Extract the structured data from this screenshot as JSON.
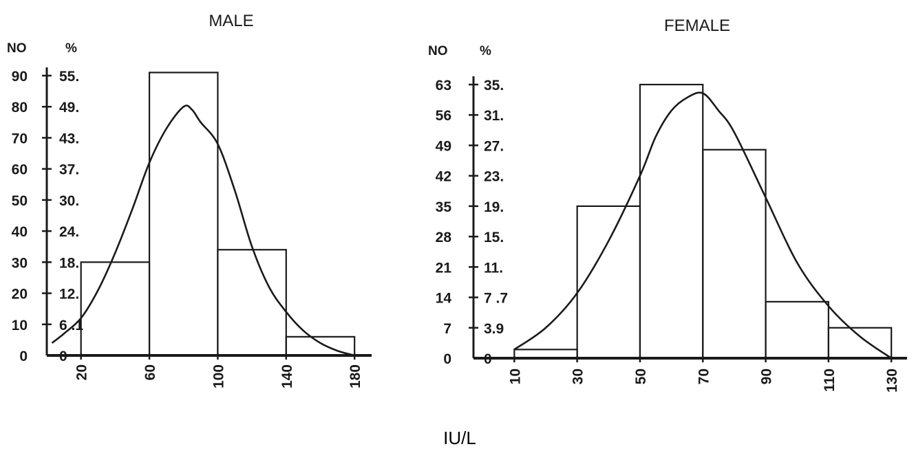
{
  "figure_xlabel": "IU/L",
  "chart_data": [
    {
      "type": "bar",
      "title": "MALE",
      "xlabel": "",
      "ylabel_left": "NO",
      "ylabel_right": "%",
      "bin_edges": [
        20,
        60,
        100,
        140,
        180
      ],
      "values": [
        30,
        91,
        34,
        6
      ],
      "xlim": [
        0,
        190
      ],
      "ylim": [
        0,
        90
      ],
      "x_ticks": [
        "20",
        "60",
        "100",
        "140",
        "180"
      ],
      "y_ticks": [
        0,
        10,
        20,
        30,
        40,
        50,
        60,
        70,
        80,
        90
      ],
      "y_tick_labels_no": [
        "0",
        "10",
        "20",
        "30",
        "40",
        "50",
        "60",
        "70",
        "80",
        "90"
      ],
      "y_tick_labels_pct": [
        "0",
        "6 .1",
        "12.",
        "18.",
        "24.",
        "30.",
        "37.",
        "43.",
        "49.",
        "55."
      ],
      "curve": {
        "x": [
          3,
          10,
          20,
          30,
          40,
          50,
          60,
          70,
          80,
          85,
          90,
          100,
          110,
          120,
          130,
          140,
          150,
          160,
          170,
          180
        ],
        "y": [
          4,
          7,
          12,
          21,
          33,
          47,
          62,
          73,
          80,
          79,
          75,
          68,
          53,
          35,
          22,
          14,
          8,
          4,
          1.5,
          0
        ]
      }
    },
    {
      "type": "bar",
      "title": "FEMALE",
      "xlabel": "",
      "ylabel_left": "NO",
      "ylabel_right": "%",
      "bin_edges": [
        10,
        30,
        50,
        70,
        90,
        110,
        130
      ],
      "values": [
        2,
        35,
        63,
        48,
        13,
        7
      ],
      "xlim": [
        -3,
        135
      ],
      "ylim": [
        0,
        63
      ],
      "x_ticks": [
        "10",
        "30",
        "50",
        "70",
        "90",
        "110",
        "130"
      ],
      "y_ticks": [
        0,
        7,
        14,
        21,
        28,
        35,
        42,
        49,
        56,
        63
      ],
      "y_tick_labels_no": [
        "0",
        "7",
        "14",
        "21",
        "28",
        "35",
        "42",
        "49",
        "56",
        "63"
      ],
      "y_tick_labels_pct": [
        "0",
        "3.9",
        "7 .7",
        "11.",
        "15.",
        "19.",
        "23.",
        "27.",
        "31.",
        "35."
      ],
      "curve": {
        "x": [
          10,
          20,
          30,
          40,
          50,
          55,
          60,
          65,
          70,
          75,
          80,
          90,
          100,
          110,
          120,
          130
        ],
        "y": [
          2,
          7,
          15,
          27,
          42,
          51,
          57,
          60,
          61,
          57,
          52,
          37,
          22,
          12,
          5,
          0
        ]
      }
    }
  ]
}
